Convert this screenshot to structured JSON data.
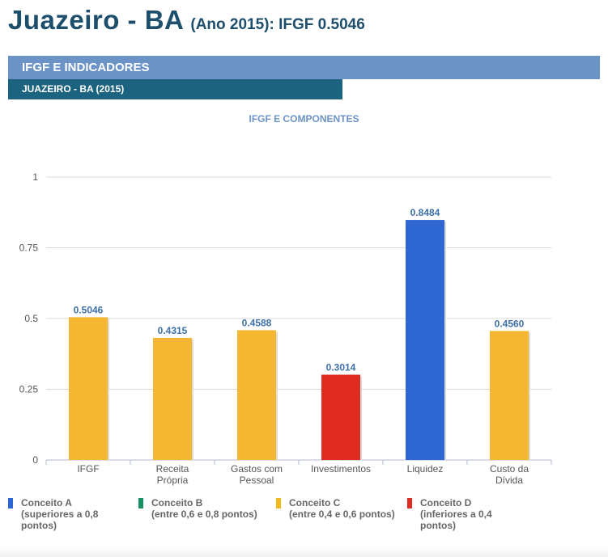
{
  "header": {
    "city": "Juazeiro - BA",
    "subtitle": "(Ano 2015): IFGF  0.5046"
  },
  "section": {
    "title": "IFGF E INDICADORES",
    "subtitle": "JUAZEIRO - BA (2015)"
  },
  "chart_data": {
    "type": "bar",
    "title": "IFGF E COMPONENTES",
    "categories": [
      [
        "IFGF"
      ],
      [
        "Receita",
        "Própria"
      ],
      [
        "Gastos com",
        "Pessoal"
      ],
      [
        "Investimentos"
      ],
      [
        "Liquidez"
      ],
      [
        "Custo da",
        "Dívida"
      ]
    ],
    "values": [
      0.5046,
      0.4315,
      0.4588,
      0.3014,
      0.8484,
      0.456
    ],
    "labels": [
      "0.5046",
      "0.4315",
      "0.4588",
      "0.3014",
      "0.8484",
      "0.4560"
    ],
    "colors": [
      "#f5b731",
      "#f5b731",
      "#f5b731",
      "#e02b20",
      "#2f67d2",
      "#f5b731"
    ],
    "ylim": [
      0,
      1
    ],
    "yticks": [
      0,
      0.25,
      0.5,
      0.75,
      1
    ],
    "ytick_labels": [
      "0",
      "0.25",
      "0.5",
      "0.75",
      "1"
    ],
    "grid": true,
    "legend_position": "bottom"
  },
  "legend": [
    {
      "name": "Conceito A",
      "desc": "(superiores a 0,8",
      "desc2": "pontos)",
      "color": "#2f67d2"
    },
    {
      "name": "Conceito B",
      "desc": "(entre 0,6 e 0,8 pontos)",
      "desc2": "",
      "color": "#1a9160"
    },
    {
      "name": "Conceito C",
      "desc": "(entre 0,4 e 0,6 pontos)",
      "desc2": "",
      "color": "#f0bb1a"
    },
    {
      "name": "Conceito D",
      "desc": "(inferiores a 0,4",
      "desc2": "pontos)",
      "color": "#e02b20"
    }
  ]
}
